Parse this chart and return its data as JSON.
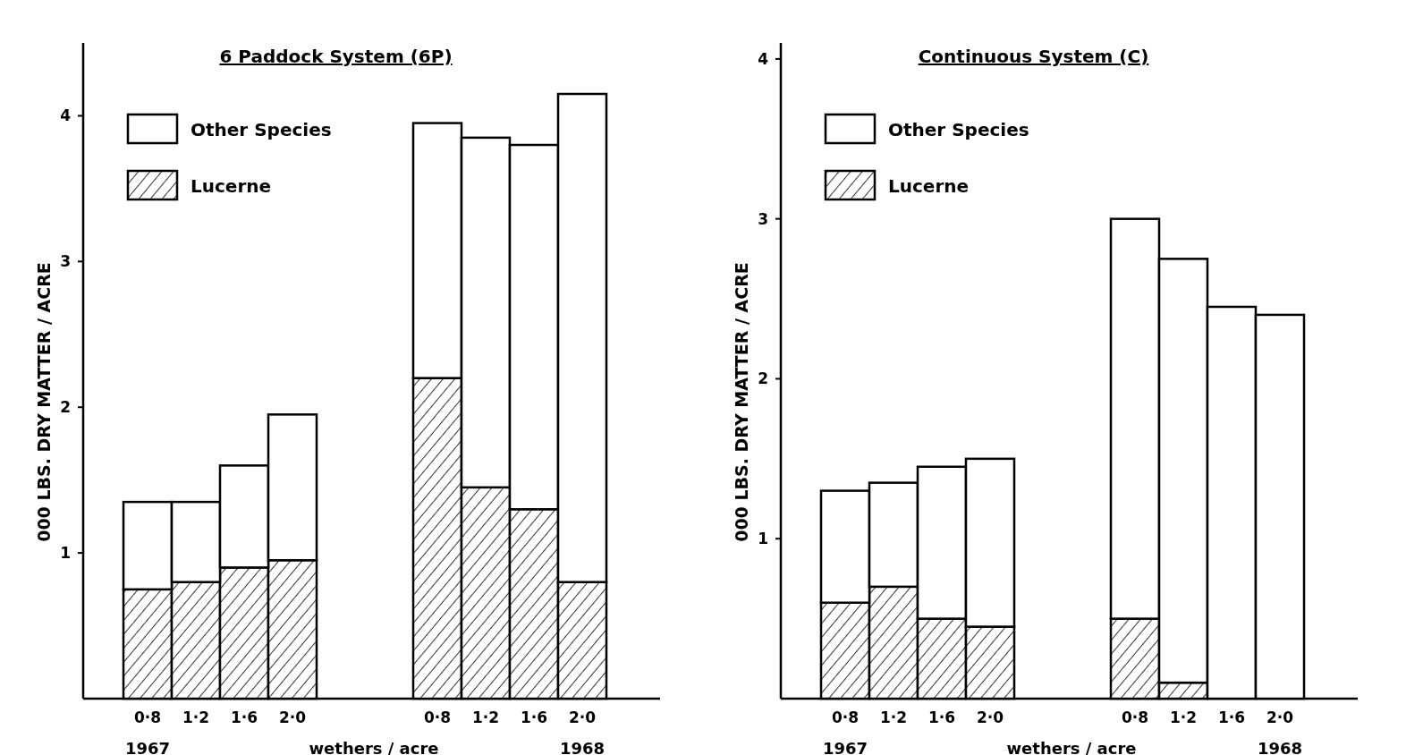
{
  "chart_data": [
    {
      "type": "bar",
      "title": "6 Paddock System (6P)",
      "xlabel": "wethers / acre",
      "ylabel": "000 LBS. DRY MATTER / ACRE",
      "stacked": true,
      "legend": "top left",
      "ylim": [
        0,
        4.5
      ],
      "yticks": [
        1,
        2,
        3,
        4
      ],
      "categories": [
        "0·8",
        "1·2",
        "1·6",
        "2·0",
        null,
        null,
        "0·8",
        "1·2",
        "1·6",
        "2·0"
      ],
      "series": [
        {
          "name": "Lucerne",
          "color": "#000000",
          "values": [
            0.75,
            0.8,
            0.9,
            0.95,
            null,
            null,
            2.2,
            1.45,
            1.3,
            0.8
          ]
        },
        {
          "name": "Other Species",
          "color": "#ffffff",
          "values": [
            0.6,
            0.55,
            0.7,
            1.0,
            null,
            null,
            1.75,
            2.4,
            2.5,
            3.35
          ]
        }
      ],
      "annotations": [
        "1967",
        "1968"
      ]
    },
    {
      "type": "bar",
      "title": "Continuous System (C)",
      "xlabel": "wethers / acre",
      "ylabel": "000 LBS. DRY MATTER / ACRE",
      "stacked": true,
      "legend": "top left",
      "ylim": [
        0,
        4.1
      ],
      "yticks": [
        1,
        2,
        3,
        4
      ],
      "categories": [
        "0·8",
        "1·2",
        "1·6",
        "2·0",
        null,
        null,
        "0·8",
        "1·2",
        "1·6",
        "2·0"
      ],
      "series": [
        {
          "name": "Lucerne",
          "color": "#000000",
          "values": [
            0.6,
            0.7,
            0.5,
            0.45,
            null,
            null,
            0.5,
            0.1,
            0,
            0
          ]
        },
        {
          "name": "Other Species",
          "color": "#ffffff",
          "values": [
            0.7,
            0.65,
            0.95,
            1.05,
            null,
            null,
            2.5,
            2.65,
            2.45,
            2.4
          ]
        }
      ],
      "annotations": [
        "1967",
        "1968"
      ]
    }
  ]
}
